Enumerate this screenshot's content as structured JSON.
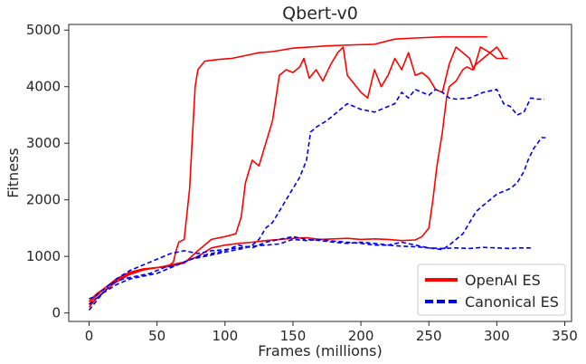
{
  "chart_data": {
    "type": "line",
    "title": "Qbert-v0",
    "xlabel": "Frames (millions)",
    "ylabel": "Fitness",
    "xlim": [
      -15,
      355
    ],
    "ylim": [
      -150,
      5100
    ],
    "xticks": [
      0,
      50,
      100,
      150,
      200,
      250,
      300,
      350
    ],
    "yticks": [
      0,
      1000,
      2000,
      3000,
      4000,
      5000
    ],
    "grid": false,
    "legend": {
      "position": "lower-right",
      "entries": [
        "OpenAI ES",
        "Canonical ES"
      ]
    },
    "colors": {
      "OpenAI ES": "#ff0000",
      "Canonical ES": "#0000ee"
    },
    "series": [
      {
        "name": "OpenAI ES",
        "style": "solid",
        "points": [
          [
            0,
            150
          ],
          [
            5,
            300
          ],
          [
            12,
            450
          ],
          [
            20,
            600
          ],
          [
            30,
            720
          ],
          [
            40,
            780
          ],
          [
            50,
            800
          ],
          [
            58,
            820
          ],
          [
            62,
            900
          ],
          [
            64,
            1100
          ],
          [
            66,
            1250
          ],
          [
            70,
            1300
          ],
          [
            74,
            2200
          ],
          [
            76,
            3100
          ],
          [
            78,
            4000
          ],
          [
            80,
            4300
          ],
          [
            85,
            4450
          ],
          [
            95,
            4480
          ],
          [
            105,
            4500
          ],
          [
            115,
            4550
          ],
          [
            125,
            4600
          ],
          [
            135,
            4620
          ],
          [
            150,
            4680
          ],
          [
            175,
            4720
          ],
          [
            195,
            4740
          ],
          [
            210,
            4750
          ],
          [
            225,
            4840
          ],
          [
            240,
            4860
          ],
          [
            260,
            4880
          ],
          [
            280,
            4880
          ],
          [
            293,
            4880
          ]
        ]
      },
      {
        "name": "OpenAI ES",
        "style": "solid",
        "points": [
          [
            0,
            100
          ],
          [
            5,
            250
          ],
          [
            12,
            400
          ],
          [
            20,
            550
          ],
          [
            30,
            680
          ],
          [
            40,
            760
          ],
          [
            50,
            800
          ],
          [
            60,
            830
          ],
          [
            70,
            880
          ],
          [
            80,
            1100
          ],
          [
            90,
            1300
          ],
          [
            100,
            1350
          ],
          [
            108,
            1400
          ],
          [
            112,
            1700
          ],
          [
            115,
            2300
          ],
          [
            120,
            2700
          ],
          [
            125,
            2600
          ],
          [
            130,
            3000
          ],
          [
            135,
            3400
          ],
          [
            140,
            4200
          ],
          [
            145,
            4300
          ],
          [
            150,
            4250
          ],
          [
            155,
            4350
          ],
          [
            158,
            4500
          ],
          [
            162,
            4150
          ],
          [
            167,
            4300
          ],
          [
            172,
            4100
          ],
          [
            178,
            4400
          ],
          [
            183,
            4600
          ],
          [
            187,
            4700
          ],
          [
            190,
            4200
          ],
          [
            195,
            4050
          ],
          [
            200,
            3900
          ],
          [
            205,
            3800
          ],
          [
            210,
            4300
          ],
          [
            215,
            4000
          ],
          [
            220,
            4200
          ],
          [
            225,
            4500
          ],
          [
            230,
            4300
          ],
          [
            235,
            4600
          ],
          [
            240,
            4200
          ],
          [
            245,
            4250
          ],
          [
            250,
            4150
          ],
          [
            255,
            3950
          ],
          [
            260,
            3900
          ],
          [
            265,
            4400
          ],
          [
            270,
            4700
          ],
          [
            275,
            4600
          ],
          [
            280,
            4500
          ],
          [
            283,
            4300
          ],
          [
            288,
            4700
          ],
          [
            295,
            4600
          ],
          [
            300,
            4500
          ],
          [
            308,
            4500
          ]
        ]
      },
      {
        "name": "OpenAI ES",
        "style": "solid",
        "points": [
          [
            0,
            200
          ],
          [
            5,
            330
          ],
          [
            12,
            450
          ],
          [
            20,
            580
          ],
          [
            30,
            700
          ],
          [
            40,
            770
          ],
          [
            50,
            800
          ],
          [
            60,
            850
          ],
          [
            70,
            900
          ],
          [
            80,
            1000
          ],
          [
            90,
            1150
          ],
          [
            100,
            1200
          ],
          [
            110,
            1230
          ],
          [
            120,
            1250
          ],
          [
            130,
            1280
          ],
          [
            140,
            1300
          ],
          [
            150,
            1320
          ],
          [
            160,
            1330
          ],
          [
            170,
            1300
          ],
          [
            180,
            1310
          ],
          [
            190,
            1320
          ],
          [
            200,
            1300
          ],
          [
            210,
            1310
          ],
          [
            220,
            1300
          ],
          [
            230,
            1280
          ],
          [
            240,
            1290
          ],
          [
            245,
            1350
          ],
          [
            250,
            1500
          ],
          [
            253,
            2000
          ],
          [
            256,
            2600
          ],
          [
            260,
            3200
          ],
          [
            263,
            3800
          ],
          [
            265,
            4000
          ],
          [
            270,
            4100
          ],
          [
            275,
            4300
          ],
          [
            278,
            4350
          ],
          [
            282,
            4300
          ],
          [
            285,
            4400
          ],
          [
            290,
            4500
          ],
          [
            295,
            4600
          ],
          [
            300,
            4700
          ],
          [
            303,
            4600
          ],
          [
            305,
            4500
          ]
        ]
      },
      {
        "name": "Canonical ES",
        "style": "dashed",
        "points": [
          [
            0,
            250
          ],
          [
            5,
            300
          ],
          [
            15,
            500
          ],
          [
            25,
            600
          ],
          [
            35,
            650
          ],
          [
            45,
            700
          ],
          [
            55,
            800
          ],
          [
            65,
            850
          ],
          [
            75,
            950
          ],
          [
            85,
            1000
          ],
          [
            95,
            1050
          ],
          [
            105,
            1100
          ],
          [
            115,
            1150
          ],
          [
            120,
            1200
          ],
          [
            125,
            1300
          ],
          [
            130,
            1500
          ],
          [
            135,
            1600
          ],
          [
            140,
            1800
          ],
          [
            145,
            2000
          ],
          [
            150,
            2200
          ],
          [
            155,
            2400
          ],
          [
            160,
            2700
          ],
          [
            163,
            3200
          ],
          [
            168,
            3300
          ],
          [
            175,
            3400
          ],
          [
            180,
            3500
          ],
          [
            185,
            3600
          ],
          [
            190,
            3700
          ],
          [
            195,
            3650
          ],
          [
            200,
            3600
          ],
          [
            210,
            3550
          ],
          [
            220,
            3650
          ],
          [
            225,
            3700
          ],
          [
            230,
            3900
          ],
          [
            235,
            3800
          ],
          [
            240,
            3950
          ],
          [
            245,
            3900
          ],
          [
            250,
            3850
          ],
          [
            255,
            3950
          ],
          [
            260,
            3900
          ],
          [
            265,
            3800
          ],
          [
            270,
            3780
          ],
          [
            280,
            3800
          ],
          [
            290,
            3900
          ],
          [
            300,
            3950
          ],
          [
            305,
            3700
          ],
          [
            310,
            3650
          ],
          [
            315,
            3500
          ],
          [
            320,
            3550
          ],
          [
            325,
            3800
          ],
          [
            330,
            3780
          ],
          [
            335,
            3780
          ]
        ]
      },
      {
        "name": "Canonical ES",
        "style": "dashed",
        "points": [
          [
            0,
            50
          ],
          [
            10,
            350
          ],
          [
            20,
            500
          ],
          [
            30,
            600
          ],
          [
            40,
            650
          ],
          [
            50,
            700
          ],
          [
            60,
            800
          ],
          [
            70,
            900
          ],
          [
            80,
            1000
          ],
          [
            90,
            1050
          ],
          [
            100,
            1100
          ],
          [
            110,
            1200
          ],
          [
            120,
            1150
          ],
          [
            130,
            1250
          ],
          [
            140,
            1300
          ],
          [
            150,
            1350
          ],
          [
            160,
            1300
          ],
          [
            170,
            1280
          ],
          [
            180,
            1250
          ],
          [
            190,
            1230
          ],
          [
            200,
            1250
          ],
          [
            210,
            1230
          ],
          [
            220,
            1200
          ],
          [
            230,
            1250
          ],
          [
            240,
            1200
          ],
          [
            250,
            1150
          ],
          [
            260,
            1120
          ],
          [
            265,
            1200
          ],
          [
            270,
            1300
          ],
          [
            275,
            1400
          ],
          [
            280,
            1600
          ],
          [
            285,
            1800
          ],
          [
            290,
            1900
          ],
          [
            295,
            2000
          ],
          [
            300,
            2100
          ],
          [
            305,
            2150
          ],
          [
            310,
            2200
          ],
          [
            315,
            2300
          ],
          [
            320,
            2500
          ],
          [
            323,
            2700
          ],
          [
            327,
            2900
          ],
          [
            330,
            3000
          ],
          [
            333,
            3100
          ],
          [
            336,
            3100
          ]
        ]
      },
      {
        "name": "Canonical ES",
        "style": "dashed",
        "points": [
          [
            0,
            150
          ],
          [
            10,
            350
          ],
          [
            20,
            600
          ],
          [
            30,
            750
          ],
          [
            40,
            850
          ],
          [
            50,
            950
          ],
          [
            60,
            1050
          ],
          [
            70,
            1100
          ],
          [
            80,
            1050
          ],
          [
            90,
            1100
          ],
          [
            100,
            1120
          ],
          [
            110,
            1150
          ],
          [
            120,
            1180
          ],
          [
            130,
            1200
          ],
          [
            140,
            1220
          ],
          [
            150,
            1300
          ],
          [
            160,
            1280
          ],
          [
            170,
            1300
          ],
          [
            180,
            1270
          ],
          [
            190,
            1250
          ],
          [
            200,
            1230
          ],
          [
            210,
            1200
          ],
          [
            220,
            1200
          ],
          [
            230,
            1180
          ],
          [
            240,
            1170
          ],
          [
            250,
            1150
          ],
          [
            260,
            1140
          ],
          [
            270,
            1150
          ],
          [
            280,
            1140
          ],
          [
            290,
            1160
          ],
          [
            300,
            1150
          ],
          [
            310,
            1140
          ],
          [
            315,
            1150
          ],
          [
            320,
            1150
          ],
          [
            325,
            1150
          ]
        ]
      }
    ]
  }
}
